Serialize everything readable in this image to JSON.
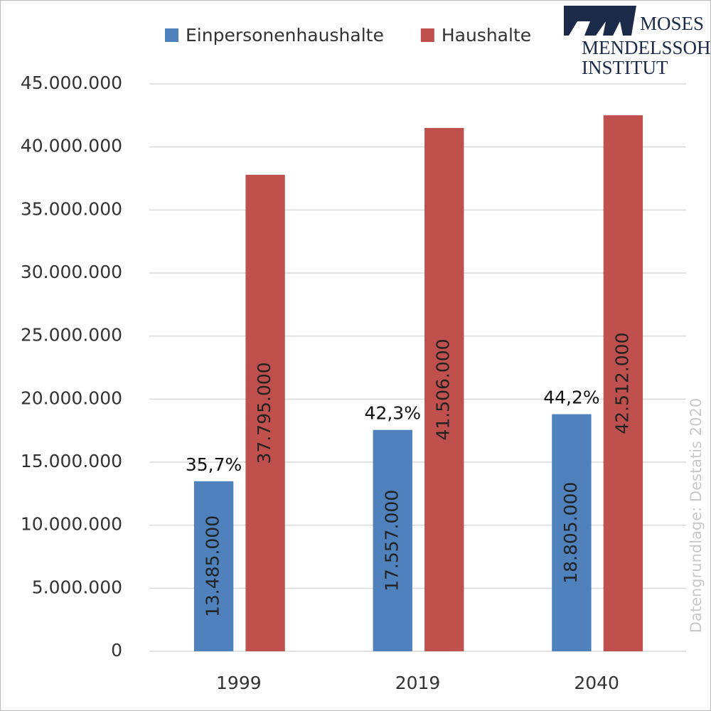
{
  "chart_data": {
    "type": "bar",
    "categories": [
      "1999",
      "2019",
      "2040"
    ],
    "series": [
      {
        "name": "Einpersonenhaushalte",
        "color": "#4f81bd",
        "values": [
          13485000,
          17557000,
          18805000
        ],
        "value_labels": [
          "13.485.000",
          "17.557.000",
          "18.805.000"
        ],
        "share_labels": [
          "35,7%",
          "42,3%",
          "44,2%"
        ]
      },
      {
        "name": "Haushalte",
        "color": "#c0504d",
        "values": [
          37795000,
          41506000,
          42512000
        ],
        "value_labels": [
          "37.795.000",
          "41.506.000",
          "42.512.000"
        ]
      }
    ],
    "ylim": [
      0,
      45000000
    ],
    "yticks": [
      0,
      {
        "value": 5000000,
        "label": "5.000.000"
      },
      {
        "value": 10000000,
        "label": "10.000.000"
      },
      {
        "value": 15000000,
        "label": "15.000.000"
      },
      {
        "value": 20000000,
        "label": "20.000.000"
      },
      {
        "value": 25000000,
        "label": "25.000.000"
      },
      {
        "value": 30000000,
        "label": "30.000.000"
      },
      {
        "value": 35000000,
        "label": "35.000.000"
      },
      {
        "value": 40000000,
        "label": "40.000.000"
      },
      {
        "value": 45000000,
        "label": "45.000.000"
      }
    ],
    "grid": true,
    "legend": "top",
    "source": "Datengrundlage: Destatis 2020",
    "logo_lines": [
      "MOSES",
      "MENDELSSOHN",
      "INSTITUT"
    ]
  }
}
